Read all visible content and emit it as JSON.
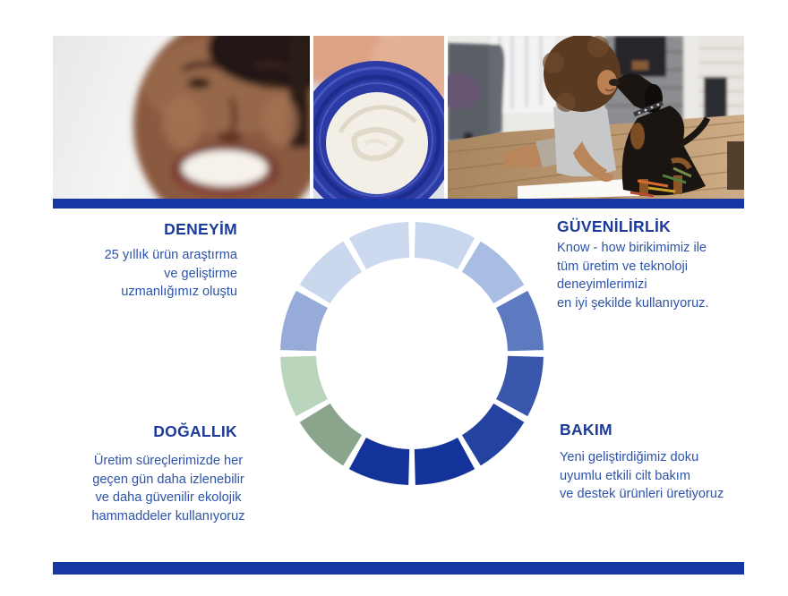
{
  "sections": {
    "deneyim": {
      "title": "DENEYİM",
      "lines": [
        "25 yıllık ürün araştırma",
        "ve geliştirme",
        "uzmanlığımız oluştu"
      ]
    },
    "guvenilirlik": {
      "title": "GÜVENİLİRLİK",
      "lines": [
        "Know - how birikimimiz ile",
        "tüm üretim ve teknoloji",
        "deneyimlerimizi",
        "en iyi şekilde kullanıyoruz."
      ]
    },
    "dogallik": {
      "title": "DOĞALLIK",
      "lines": [
        "Üretim süreçlerimizde her",
        "geçen gün daha izlenebilir",
        "ve daha güvenilir ekolojik",
        "hammaddeler kullanıyoruz"
      ]
    },
    "bakim": {
      "title": "BAKIM",
      "lines": [
        "Yeni geliştirdiğimiz doku",
        "uyumlu etkili cilt bakım",
        "ve destek ürünleri üretiyoruz"
      ]
    }
  },
  "colors": {
    "divider": "#1636a3",
    "heading": "#1c3a99",
    "body_text": "#2d53a9"
  },
  "ring": {
    "gap_deg": 3,
    "outer_r": 147,
    "inner_r": 107,
    "segments": [
      {
        "name": "seg-12-to-1",
        "color": "#c9d7ee"
      },
      {
        "name": "seg-1-to-2",
        "color": "#a9bce3"
      },
      {
        "name": "seg-2-to-3",
        "color": "#5d79c0"
      },
      {
        "name": "seg-3-to-4",
        "color": "#3a57ae"
      },
      {
        "name": "seg-4-to-5",
        "color": "#24429f"
      },
      {
        "name": "seg-5-to-6",
        "color": "#13339b"
      },
      {
        "name": "seg-6-to-7",
        "color": "#13339b"
      },
      {
        "name": "seg-7-to-8",
        "color": "#8aa58c"
      },
      {
        "name": "seg-8-to-9",
        "color": "#b9d6bc"
      },
      {
        "name": "seg-9-to-10",
        "color": "#97abd8"
      },
      {
        "name": "seg-10-to-11",
        "color": "#cad8ee"
      },
      {
        "name": "seg-11-to-12",
        "color": "#cdd9ef"
      }
    ]
  },
  "photos": [
    {
      "name": "smiling-woman-photo"
    },
    {
      "name": "cream-jar-photo"
    },
    {
      "name": "girl-with-dog-photo"
    }
  ]
}
